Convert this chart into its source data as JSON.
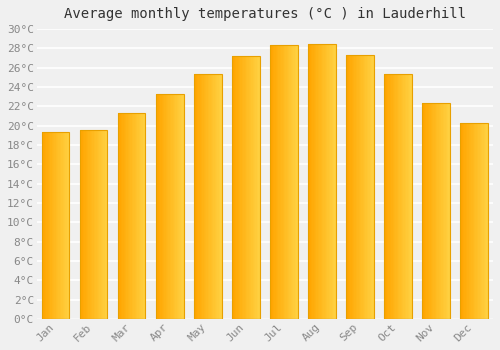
{
  "title": "Average monthly temperatures (°C ) in Lauderhill",
  "months": [
    "Jan",
    "Feb",
    "Mar",
    "Apr",
    "May",
    "Jun",
    "Jul",
    "Aug",
    "Sep",
    "Oct",
    "Nov",
    "Dec"
  ],
  "values": [
    19.3,
    19.5,
    21.3,
    23.3,
    25.3,
    27.2,
    28.3,
    28.5,
    27.3,
    25.3,
    22.3,
    20.3
  ],
  "bar_color_left": "#FFA500",
  "bar_color_right": "#FFD040",
  "bar_outline_color": "#E8A000",
  "ylim": [
    0,
    30
  ],
  "ytick_step": 2,
  "background_color": "#F0F0F0",
  "grid_color": "#FFFFFF",
  "title_fontsize": 10,
  "tick_fontsize": 8,
  "font_family": "monospace"
}
